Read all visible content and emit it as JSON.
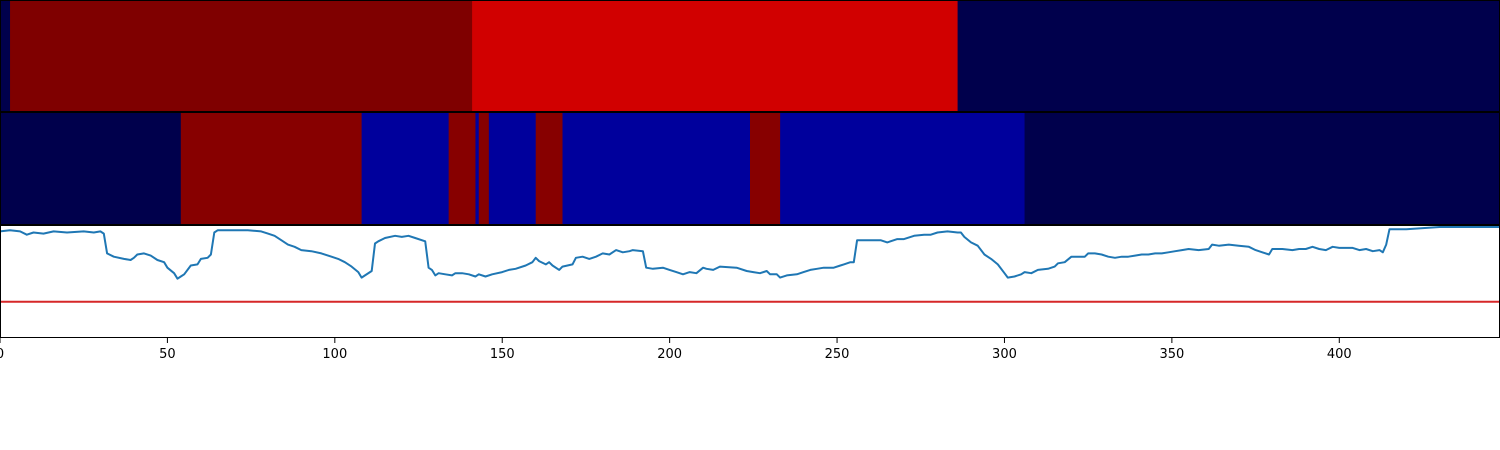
{
  "chart_data": [
    {
      "type": "heatmap",
      "panel": "top-band",
      "x_range": [
        0,
        448
      ],
      "segments": [
        {
          "start": 0,
          "end": 3,
          "color": "#00004c"
        },
        {
          "start": 3,
          "end": 141,
          "color": "#7f0000"
        },
        {
          "start": 141,
          "end": 286,
          "color": "#d10000"
        },
        {
          "start": 286,
          "end": 448,
          "color": "#00004c"
        }
      ]
    },
    {
      "type": "heatmap",
      "panel": "middle-band",
      "x_range": [
        0,
        448
      ],
      "segments": [
        {
          "start": 0,
          "end": 54,
          "color": "#00004c"
        },
        {
          "start": 54,
          "end": 108,
          "color": "#870000"
        },
        {
          "start": 108,
          "end": 134,
          "color": "#00009c"
        },
        {
          "start": 134,
          "end": 142,
          "color": "#870000"
        },
        {
          "start": 142,
          "end": 143,
          "color": "#00009c"
        },
        {
          "start": 143,
          "end": 146,
          "color": "#870000"
        },
        {
          "start": 146,
          "end": 160,
          "color": "#00009c"
        },
        {
          "start": 160,
          "end": 168,
          "color": "#870000"
        },
        {
          "start": 168,
          "end": 224,
          "color": "#00009c"
        },
        {
          "start": 224,
          "end": 233,
          "color": "#870000"
        },
        {
          "start": 233,
          "end": 306,
          "color": "#00009c"
        },
        {
          "start": 306,
          "end": 448,
          "color": "#00004c"
        }
      ]
    },
    {
      "type": "line",
      "panel": "bottom-line",
      "x_range": [
        0,
        448
      ],
      "ylim": [
        0,
        100
      ],
      "threshold": 32,
      "series_color": "#1f77b4",
      "threshold_color": "#d62728",
      "points": [
        [
          0,
          96
        ],
        [
          3,
          97
        ],
        [
          6,
          96
        ],
        [
          8,
          93
        ],
        [
          10,
          95
        ],
        [
          13,
          94
        ],
        [
          16,
          96
        ],
        [
          20,
          95
        ],
        [
          25,
          96
        ],
        [
          28,
          95
        ],
        [
          30,
          96
        ],
        [
          31,
          94
        ],
        [
          32,
          76
        ],
        [
          34,
          73
        ],
        [
          37,
          71
        ],
        [
          39,
          70
        ],
        [
          40,
          72
        ],
        [
          41,
          75
        ],
        [
          43,
          76
        ],
        [
          45,
          74
        ],
        [
          47,
          70
        ],
        [
          49,
          68
        ],
        [
          50,
          63
        ],
        [
          52,
          58
        ],
        [
          53,
          53
        ],
        [
          54,
          55
        ],
        [
          55,
          57
        ],
        [
          57,
          65
        ],
        [
          59,
          66
        ],
        [
          60,
          71
        ],
        [
          62,
          72
        ],
        [
          63,
          75
        ],
        [
          64,
          95
        ],
        [
          65,
          97
        ],
        [
          70,
          97
        ],
        [
          74,
          97
        ],
        [
          78,
          96
        ],
        [
          80,
          94
        ],
        [
          82,
          92
        ],
        [
          84,
          88
        ],
        [
          86,
          84
        ],
        [
          88,
          82
        ],
        [
          90,
          79
        ],
        [
          93,
          78
        ],
        [
          96,
          76
        ],
        [
          99,
          73
        ],
        [
          101,
          71
        ],
        [
          103,
          68
        ],
        [
          105,
          64
        ],
        [
          107,
          59
        ],
        [
          108,
          54
        ],
        [
          109,
          56
        ],
        [
          111,
          60
        ],
        [
          112,
          85
        ],
        [
          113,
          87
        ],
        [
          115,
          90
        ],
        [
          118,
          92
        ],
        [
          120,
          91
        ],
        [
          122,
          92
        ],
        [
          124,
          90
        ],
        [
          127,
          87
        ],
        [
          128,
          63
        ],
        [
          129,
          61
        ],
        [
          130,
          56
        ],
        [
          131,
          58
        ],
        [
          133,
          57
        ],
        [
          135,
          56
        ],
        [
          136,
          58
        ],
        [
          138,
          58
        ],
        [
          140,
          57
        ],
        [
          142,
          55
        ],
        [
          143,
          57
        ],
        [
          145,
          55
        ],
        [
          147,
          57
        ],
        [
          150,
          59
        ],
        [
          152,
          61
        ],
        [
          154,
          62
        ],
        [
          157,
          65
        ],
        [
          159,
          68
        ],
        [
          160,
          72
        ],
        [
          161,
          69
        ],
        [
          163,
          66
        ],
        [
          164,
          68
        ],
        [
          165,
          65
        ],
        [
          167,
          61
        ],
        [
          168,
          64
        ],
        [
          171,
          66
        ],
        [
          172,
          72
        ],
        [
          174,
          73
        ],
        [
          176,
          71
        ],
        [
          178,
          73
        ],
        [
          180,
          76
        ],
        [
          182,
          75
        ],
        [
          184,
          79
        ],
        [
          186,
          77
        ],
        [
          188,
          78
        ],
        [
          189,
          79
        ],
        [
          192,
          78
        ],
        [
          193,
          63
        ],
        [
          195,
          62
        ],
        [
          198,
          63
        ],
        [
          200,
          61
        ],
        [
          202,
          59
        ],
        [
          204,
          57
        ],
        [
          206,
          59
        ],
        [
          208,
          58
        ],
        [
          210,
          63
        ],
        [
          211,
          62
        ],
        [
          213,
          61
        ],
        [
          215,
          64
        ],
        [
          220,
          63
        ],
        [
          223,
          60
        ],
        [
          225,
          59
        ],
        [
          227,
          58
        ],
        [
          229,
          60
        ],
        [
          230,
          57
        ],
        [
          232,
          57
        ],
        [
          233,
          54
        ],
        [
          235,
          56
        ],
        [
          238,
          57
        ],
        [
          240,
          59
        ],
        [
          242,
          61
        ],
        [
          244,
          62
        ],
        [
          246,
          63
        ],
        [
          249,
          63
        ],
        [
          251,
          65
        ],
        [
          252,
          66
        ],
        [
          254,
          68
        ],
        [
          255,
          68
        ],
        [
          256,
          88
        ],
        [
          258,
          88
        ],
        [
          261,
          88
        ],
        [
          263,
          88
        ],
        [
          265,
          86
        ],
        [
          268,
          89
        ],
        [
          270,
          89
        ],
        [
          273,
          92
        ],
        [
          276,
          93
        ],
        [
          278,
          93
        ],
        [
          280,
          95
        ],
        [
          283,
          96
        ],
        [
          286,
          95
        ],
        [
          287,
          95
        ],
        [
          288,
          91
        ],
        [
          290,
          86
        ],
        [
          292,
          83
        ],
        [
          294,
          75
        ],
        [
          296,
          71
        ],
        [
          298,
          66
        ],
        [
          300,
          58
        ],
        [
          301,
          54
        ],
        [
          303,
          55
        ],
        [
          305,
          57
        ],
        [
          306,
          59
        ],
        [
          308,
          58
        ],
        [
          310,
          61
        ],
        [
          313,
          62
        ],
        [
          315,
          64
        ],
        [
          316,
          67
        ],
        [
          318,
          68
        ],
        [
          320,
          73
        ],
        [
          322,
          73
        ],
        [
          324,
          73
        ],
        [
          325,
          76
        ],
        [
          327,
          76
        ],
        [
          329,
          75
        ],
        [
          331,
          73
        ],
        [
          333,
          72
        ],
        [
          335,
          73
        ],
        [
          337,
          73
        ],
        [
          339,
          74
        ],
        [
          341,
          75
        ],
        [
          343,
          75
        ],
        [
          345,
          76
        ],
        [
          347,
          76
        ],
        [
          349,
          77
        ],
        [
          351,
          78
        ],
        [
          353,
          79
        ],
        [
          355,
          80
        ],
        [
          358,
          79
        ],
        [
          361,
          80
        ],
        [
          362,
          84
        ],
        [
          364,
          83
        ],
        [
          367,
          84
        ],
        [
          370,
          83
        ],
        [
          373,
          82
        ],
        [
          375,
          79
        ],
        [
          377,
          77
        ],
        [
          379,
          75
        ],
        [
          380,
          80
        ],
        [
          383,
          80
        ],
        [
          386,
          79
        ],
        [
          388,
          80
        ],
        [
          390,
          80
        ],
        [
          392,
          82
        ],
        [
          394,
          80
        ],
        [
          396,
          79
        ],
        [
          398,
          82
        ],
        [
          400,
          81
        ],
        [
          402,
          81
        ],
        [
          404,
          81
        ],
        [
          406,
          79
        ],
        [
          408,
          80
        ],
        [
          410,
          78
        ],
        [
          412,
          79
        ],
        [
          413,
          77
        ],
        [
          414,
          84
        ],
        [
          415,
          98
        ],
        [
          420,
          98
        ],
        [
          425,
          99
        ],
        [
          430,
          100
        ],
        [
          436,
          100
        ],
        [
          440,
          100
        ],
        [
          448,
          100
        ]
      ]
    }
  ],
  "axis": {
    "ticks": [
      {
        "value": 0,
        "label": "0"
      },
      {
        "value": 50,
        "label": "50"
      },
      {
        "value": 100,
        "label": "100"
      },
      {
        "value": 150,
        "label": "150"
      },
      {
        "value": 200,
        "label": "200"
      },
      {
        "value": 250,
        "label": "250"
      },
      {
        "value": 300,
        "label": "300"
      },
      {
        "value": 350,
        "label": "350"
      },
      {
        "value": 400,
        "label": "400"
      }
    ]
  }
}
